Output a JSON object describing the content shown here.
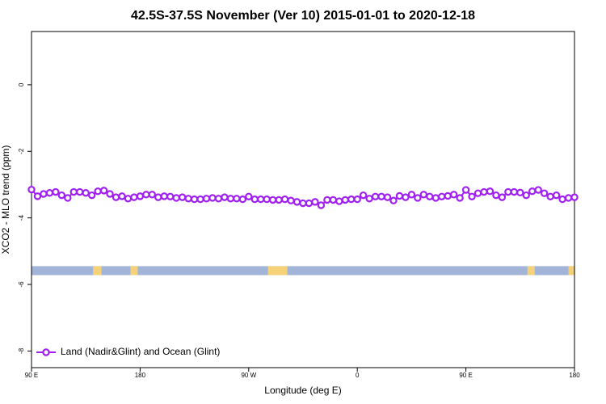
{
  "chart_data": {
    "type": "line",
    "title": "42.5S-37.5S November (Ver 10)   2015-01-01 to 2020-12-18",
    "x_label": "Longitude (deg E)",
    "y_label": "XCO2 - MLO trend (ppm)",
    "xlim": [
      90,
      540
    ],
    "ylim": [
      -8.5,
      1.6
    ],
    "xticks": [
      {
        "value": 90,
        "label": "90 E"
      },
      180,
      {
        "value": 270,
        "label": "90 W"
      },
      {
        "value": 360,
        "label": "0"
      },
      {
        "value": 450,
        "label": "90 E"
      },
      {
        "value": 540,
        "label": "180"
      }
    ],
    "yticks": [
      0,
      -2,
      -4,
      -6,
      -8
    ],
    "legend": "bottom-left",
    "x": [
      90,
      95,
      100,
      105,
      110,
      115,
      120,
      125,
      130,
      135,
      140,
      145,
      150,
      155,
      160,
      165,
      170,
      175,
      180,
      185,
      190,
      195,
      200,
      205,
      210,
      215,
      220,
      225,
      230,
      235,
      240,
      245,
      250,
      255,
      260,
      265,
      270,
      275,
      280,
      285,
      290,
      295,
      300,
      305,
      310,
      315,
      320,
      325,
      330,
      335,
      340,
      345,
      350,
      355,
      360,
      365,
      370,
      375,
      380,
      385,
      390,
      395,
      400,
      405,
      410,
      415,
      420,
      425,
      430,
      435,
      440,
      445,
      450,
      455,
      460,
      465,
      470,
      475,
      480,
      485,
      490,
      495,
      500,
      505,
      510,
      515,
      520,
      525,
      530,
      535,
      540
    ],
    "series": [
      {
        "name": "Land (Nadir&Glint) and Ocean (Glint)",
        "color": "#a020f0",
        "values": [
          -3.15,
          -3.35,
          -3.28,
          -3.25,
          -3.22,
          -3.32,
          -3.4,
          -3.22,
          -3.22,
          -3.25,
          -3.32,
          -3.2,
          -3.18,
          -3.28,
          -3.38,
          -3.35,
          -3.42,
          -3.38,
          -3.35,
          -3.3,
          -3.3,
          -3.38,
          -3.35,
          -3.36,
          -3.4,
          -3.38,
          -3.42,
          -3.44,
          -3.44,
          -3.42,
          -3.4,
          -3.42,
          -3.38,
          -3.42,
          -3.42,
          -3.44,
          -3.36,
          -3.44,
          -3.44,
          -3.44,
          -3.46,
          -3.46,
          -3.44,
          -3.48,
          -3.52,
          -3.56,
          -3.56,
          -3.52,
          -3.62,
          -3.46,
          -3.46,
          -3.5,
          -3.46,
          -3.44,
          -3.44,
          -3.32,
          -3.42,
          -3.36,
          -3.36,
          -3.38,
          -3.48,
          -3.34,
          -3.38,
          -3.3,
          -3.4,
          -3.3,
          -3.36,
          -3.4,
          -3.36,
          -3.34,
          -3.3,
          -3.4,
          -3.16,
          -3.36,
          -3.26,
          -3.22,
          -3.2,
          -3.32,
          -3.38,
          -3.22,
          -3.22,
          -3.24,
          -3.32,
          -3.2,
          -3.16,
          -3.26,
          -3.36,
          -3.32,
          -3.44,
          -3.4,
          -3.38
        ]
      }
    ],
    "mask_band": {
      "ylim": [
        -5.72,
        -5.45
      ],
      "ocean_color": "#a2b5d8",
      "land_color": "#f5d27a",
      "land_regions": [
        [
          141,
          148
        ],
        [
          172,
          178
        ],
        [
          286,
          302
        ],
        [
          501,
          507
        ],
        [
          535,
          540
        ]
      ]
    }
  }
}
